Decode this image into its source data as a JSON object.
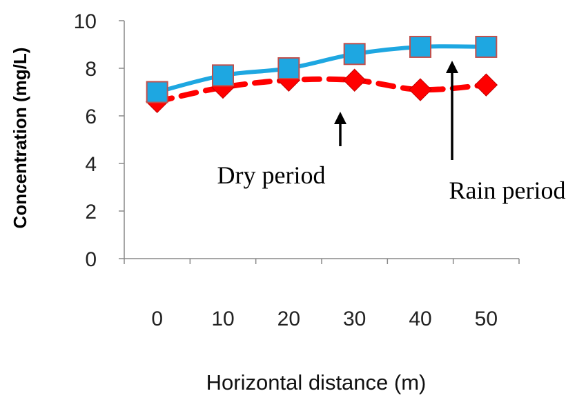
{
  "chart_data": {
    "type": "line",
    "title": "",
    "xlabel": "Horizontal distance (m)",
    "ylabel": "Concentration (mg/L)",
    "categories": [
      "0",
      "10",
      "20",
      "30",
      "40",
      "50"
    ],
    "x": [
      0,
      10,
      20,
      30,
      40,
      50
    ],
    "ylim": [
      0,
      10
    ],
    "yticks": [
      "0",
      "2",
      "4",
      "6",
      "8",
      "10"
    ],
    "grid": false,
    "legend": "none",
    "series": [
      {
        "name": "Rain period",
        "values": [
          7.0,
          7.7,
          8.0,
          8.6,
          8.9,
          8.9
        ],
        "color": "#1ea7e1",
        "marker": "square",
        "line": "solid"
      },
      {
        "name": "Dry period",
        "values": [
          6.6,
          7.2,
          7.5,
          7.5,
          7.1,
          7.3
        ],
        "color": "#ff0000",
        "marker": "diamond",
        "line": "dashed"
      }
    ],
    "annotations": [
      {
        "text": "Dry period",
        "points_to_x": 30,
        "arrow": "up"
      },
      {
        "text": "Rain period",
        "points_to_x": 40,
        "arrow": "up"
      }
    ]
  }
}
